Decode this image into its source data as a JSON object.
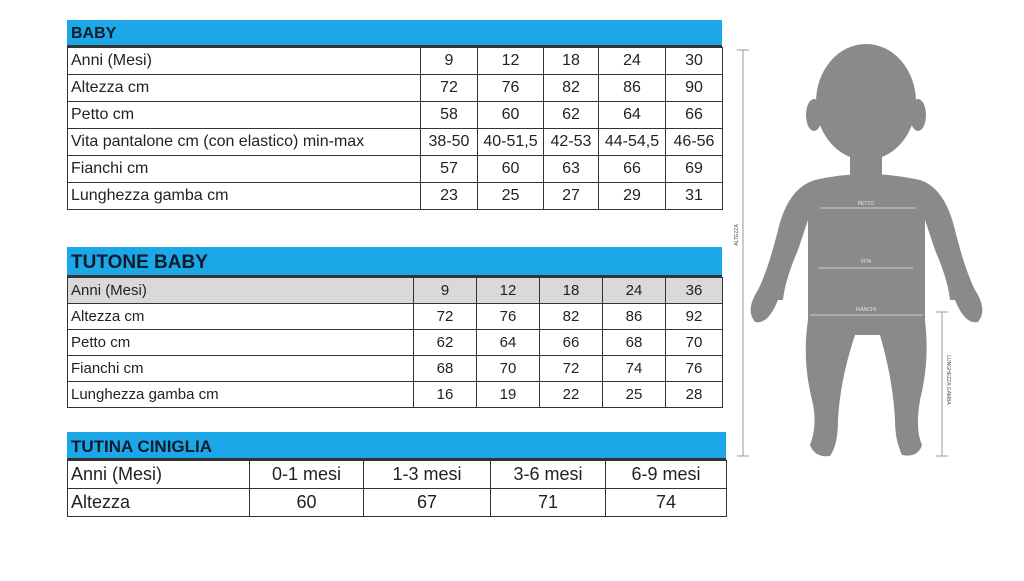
{
  "tables": [
    {
      "title": "BABY",
      "rows": [
        {
          "label": "Anni (Mesi)",
          "values": [
            "9",
            "12",
            "18",
            "24",
            "30"
          ]
        },
        {
          "label": "Altezza cm",
          "values": [
            "72",
            "76",
            "82",
            "86",
            "90"
          ]
        },
        {
          "label": "Petto cm",
          "values": [
            "58",
            "60",
            "62",
            "64",
            "66"
          ]
        },
        {
          "label": "Vita pantalone cm (con elastico) min-max",
          "values": [
            "38-50",
            "40-51,5",
            "42-53",
            "44-54,5",
            "46-56"
          ]
        },
        {
          "label": "Fianchi cm",
          "values": [
            "57",
            "60",
            "63",
            "66",
            "69"
          ]
        },
        {
          "label": "Lunghezza gamba cm",
          "values": [
            "23",
            "25",
            "27",
            "29",
            "31"
          ]
        }
      ]
    },
    {
      "title": "TUTONE BABY",
      "rows": [
        {
          "label": "Anni (Mesi)",
          "values": [
            "9",
            "12",
            "18",
            "24",
            "36"
          ]
        },
        {
          "label": "Altezza cm",
          "values": [
            "72",
            "76",
            "82",
            "86",
            "92"
          ]
        },
        {
          "label": "Petto cm",
          "values": [
            "62",
            "64",
            "66",
            "68",
            "70"
          ]
        },
        {
          "label": "Fianchi cm",
          "values": [
            "68",
            "70",
            "72",
            "74",
            "76"
          ]
        },
        {
          "label": "Lunghezza gamba cm",
          "values": [
            "16",
            "19",
            "22",
            "25",
            "28"
          ]
        }
      ]
    },
    {
      "title": "TUTINA CINIGLIA",
      "rows": [
        {
          "label": "Anni (Mesi)",
          "values": [
            "0-1 mesi",
            "1-3 mesi",
            "3-6 mesi",
            "6-9 mesi"
          ]
        },
        {
          "label": "Altezza",
          "values": [
            "60",
            "67",
            "71",
            "74"
          ]
        }
      ]
    }
  ],
  "figure": {
    "labels": {
      "height": "ALTEZZA",
      "chest": "PETTO",
      "waist": "VITA",
      "hips": "FIANCHI",
      "leg": "LUNGHEZZA GAMBA"
    }
  },
  "colors": {
    "header": "#1ca7e8",
    "silhouette": "#8a8a8a",
    "header_row_gray": "#d9d9d9"
  }
}
